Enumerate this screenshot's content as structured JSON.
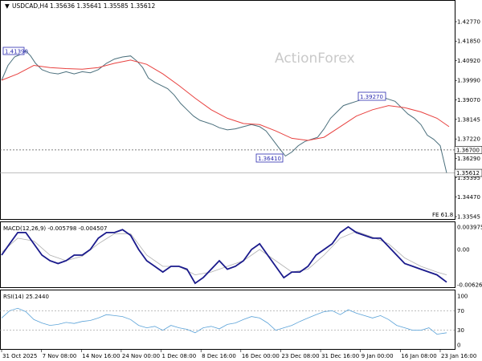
{
  "window": {
    "symbol_title": "USDCAD,H4",
    "ohlc": "1.35636 1.35641 1.35585 1.35612",
    "watermark": "ActionForex"
  },
  "colors": {
    "candles": "#4a6f7c",
    "ma": "#e8413f",
    "macd_line": "#1a1a8c",
    "macd_signal": "#b0b0b0",
    "rsi": "#5aa2d8",
    "tag_border": "#2b2bb0",
    "grid_dots": "#555555"
  },
  "price_panel": {
    "y_ticks": [
      "1.42770",
      "1.41850",
      "1.40920",
      "1.39990",
      "1.39070",
      "1.38145",
      "1.37220",
      "1.36290",
      "1.35395",
      "1.34470",
      "1.33545"
    ],
    "current_price": "1.35612",
    "hline_price": "1.36700",
    "annotations": {
      "high_left": "1.41390",
      "low_mid": "1.36410",
      "high_right": "1.39270"
    },
    "fe_label": "FE 61.8"
  },
  "macd_panel": {
    "title": "MACD(12,26,9) -0.005798 -0.004507",
    "y_ticks": [
      "0.003975",
      "0.00",
      "-0.006264"
    ]
  },
  "rsi_panel": {
    "title": "RSI(14) 25.2440",
    "y_ticks": [
      "100",
      "70",
      "30",
      "0"
    ]
  },
  "x_axis": {
    "labels": [
      "31 Oct 2025",
      "7 Nov 08:00",
      "14 Nov 16:00",
      "24 Nov 00:00",
      "1 Dec 08:00",
      "8 Dec 16:00",
      "16 Dec 00:00",
      "23 Dec 08:00",
      "31 Dec 16:00",
      "9 Jan 00:00",
      "16 Jan 08:00",
      "23 Jan 16:00"
    ]
  },
  "chart_data": {
    "type": "line",
    "title": "USDCAD,H4",
    "price_series": [
      [
        0,
        1.4
      ],
      [
        8,
        1.407
      ],
      [
        16,
        1.411
      ],
      [
        22,
        1.412
      ],
      [
        30,
        1.4139
      ],
      [
        36,
        1.4115
      ],
      [
        42,
        1.408
      ],
      [
        50,
        1.405
      ],
      [
        60,
        1.4035
      ],
      [
        70,
        1.403
      ],
      [
        80,
        1.404
      ],
      [
        90,
        1.403
      ],
      [
        100,
        1.404
      ],
      [
        110,
        1.4035
      ],
      [
        120,
        1.405
      ],
      [
        130,
        1.408
      ],
      [
        140,
        1.41
      ],
      [
        150,
        1.411
      ],
      [
        160,
        1.4115
      ],
      [
        168,
        1.409
      ],
      [
        175,
        1.406
      ],
      [
        182,
        1.401
      ],
      [
        190,
        1.399
      ],
      [
        198,
        1.3975
      ],
      [
        206,
        1.396
      ],
      [
        214,
        1.393
      ],
      [
        222,
        1.389
      ],
      [
        230,
        1.386
      ],
      [
        238,
        1.383
      ],
      [
        246,
        1.381
      ],
      [
        254,
        1.38
      ],
      [
        262,
        1.379
      ],
      [
        270,
        1.3775
      ],
      [
        280,
        1.3765
      ],
      [
        290,
        1.377
      ],
      [
        300,
        1.378
      ],
      [
        310,
        1.379
      ],
      [
        320,
        1.378
      ],
      [
        328,
        1.376
      ],
      [
        336,
        1.372
      ],
      [
        344,
        1.368
      ],
      [
        352,
        1.3641
      ],
      [
        360,
        1.366
      ],
      [
        368,
        1.369
      ],
      [
        376,
        1.371
      ],
      [
        384,
        1.372
      ],
      [
        392,
        1.373
      ],
      [
        400,
        1.377
      ],
      [
        408,
        1.382
      ],
      [
        416,
        1.385
      ],
      [
        424,
        1.388
      ],
      [
        432,
        1.389
      ],
      [
        440,
        1.39
      ],
      [
        448,
        1.391
      ],
      [
        456,
        1.392
      ],
      [
        464,
        1.3927
      ],
      [
        472,
        1.392
      ],
      [
        480,
        1.391
      ],
      [
        488,
        1.39
      ],
      [
        496,
        1.387
      ],
      [
        504,
        1.384
      ],
      [
        512,
        1.382
      ],
      [
        520,
        1.379
      ],
      [
        528,
        1.374
      ],
      [
        536,
        1.372
      ],
      [
        544,
        1.369
      ],
      [
        552,
        1.3561
      ]
    ],
    "ma_series": [
      [
        0,
        1.4
      ],
      [
        20,
        1.403
      ],
      [
        40,
        1.407
      ],
      [
        60,
        1.406
      ],
      [
        80,
        1.4055
      ],
      [
        100,
        1.4052
      ],
      [
        120,
        1.406
      ],
      [
        140,
        1.408
      ],
      [
        160,
        1.4095
      ],
      [
        180,
        1.4075
      ],
      [
        200,
        1.403
      ],
      [
        220,
        1.3975
      ],
      [
        240,
        1.3915
      ],
      [
        260,
        1.386
      ],
      [
        280,
        1.382
      ],
      [
        300,
        1.3795
      ],
      [
        320,
        1.379
      ],
      [
        340,
        1.376
      ],
      [
        360,
        1.3725
      ],
      [
        380,
        1.3715
      ],
      [
        400,
        1.373
      ],
      [
        420,
        1.378
      ],
      [
        440,
        1.383
      ],
      [
        460,
        1.386
      ],
      [
        480,
        1.388
      ],
      [
        500,
        1.387
      ],
      [
        520,
        1.385
      ],
      [
        540,
        1.382
      ],
      [
        555,
        1.378
      ]
    ],
    "macd_series": [
      [
        0,
        -0.001
      ],
      [
        10,
        0.001
      ],
      [
        20,
        0.003
      ],
      [
        30,
        0.003
      ],
      [
        40,
        0.001
      ],
      [
        50,
        -0.001
      ],
      [
        60,
        -0.002
      ],
      [
        70,
        -0.0025
      ],
      [
        80,
        -0.002
      ],
      [
        90,
        -0.001
      ],
      [
        100,
        -0.001
      ],
      [
        110,
        0.0
      ],
      [
        120,
        0.002
      ],
      [
        130,
        0.003
      ],
      [
        140,
        0.003
      ],
      [
        150,
        0.0035
      ],
      [
        160,
        0.0025
      ],
      [
        170,
        0.0
      ],
      [
        180,
        -0.002
      ],
      [
        190,
        -0.003
      ],
      [
        200,
        -0.004
      ],
      [
        210,
        -0.003
      ],
      [
        220,
        -0.003
      ],
      [
        230,
        -0.0035
      ],
      [
        240,
        -0.006
      ],
      [
        250,
        -0.005
      ],
      [
        260,
        -0.0035
      ],
      [
        270,
        -0.002
      ],
      [
        280,
        -0.0035
      ],
      [
        290,
        -0.003
      ],
      [
        300,
        -0.002
      ],
      [
        310,
        0.0
      ],
      [
        320,
        0.001
      ],
      [
        330,
        -0.001
      ],
      [
        340,
        -0.003
      ],
      [
        350,
        -0.005
      ],
      [
        360,
        -0.004
      ],
      [
        370,
        -0.004
      ],
      [
        380,
        -0.003
      ],
      [
        390,
        -0.001
      ],
      [
        400,
        0.0
      ],
      [
        410,
        0.001
      ],
      [
        420,
        0.003
      ],
      [
        430,
        0.004
      ],
      [
        440,
        0.003
      ],
      [
        450,
        0.0025
      ],
      [
        460,
        0.002
      ],
      [
        470,
        0.002
      ],
      [
        480,
        0.0005
      ],
      [
        490,
        -0.001
      ],
      [
        500,
        -0.0025
      ],
      [
        510,
        -0.003
      ],
      [
        520,
        -0.0035
      ],
      [
        530,
        -0.004
      ],
      [
        540,
        -0.0045
      ],
      [
        552,
        -0.0058
      ]
    ],
    "macd_signal_series": [
      [
        0,
        -0.0005
      ],
      [
        20,
        0.002
      ],
      [
        40,
        0.0015
      ],
      [
        60,
        -0.001
      ],
      [
        80,
        -0.002
      ],
      [
        100,
        -0.0012
      ],
      [
        120,
        0.001
      ],
      [
        140,
        0.0028
      ],
      [
        160,
        0.0028
      ],
      [
        180,
        -0.001
      ],
      [
        200,
        -0.003
      ],
      [
        220,
        -0.003
      ],
      [
        240,
        -0.0045
      ],
      [
        260,
        -0.004
      ],
      [
        280,
        -0.003
      ],
      [
        300,
        -0.002
      ],
      [
        320,
        0.0
      ],
      [
        340,
        -0.002
      ],
      [
        360,
        -0.004
      ],
      [
        380,
        -0.0035
      ],
      [
        400,
        -0.001
      ],
      [
        420,
        0.002
      ],
      [
        440,
        0.0032
      ],
      [
        460,
        0.0022
      ],
      [
        480,
        0.001
      ],
      [
        500,
        -0.0015
      ],
      [
        520,
        -0.003
      ],
      [
        540,
        -0.004
      ],
      [
        552,
        -0.0045
      ]
    ],
    "rsi_series": [
      [
        0,
        55
      ],
      [
        10,
        70
      ],
      [
        20,
        75
      ],
      [
        30,
        68
      ],
      [
        40,
        52
      ],
      [
        50,
        45
      ],
      [
        60,
        40
      ],
      [
        70,
        42
      ],
      [
        80,
        46
      ],
      [
        90,
        44
      ],
      [
        100,
        48
      ],
      [
        110,
        50
      ],
      [
        120,
        55
      ],
      [
        130,
        62
      ],
      [
        140,
        60
      ],
      [
        150,
        58
      ],
      [
        160,
        52
      ],
      [
        170,
        40
      ],
      [
        180,
        35
      ],
      [
        190,
        38
      ],
      [
        200,
        30
      ],
      [
        210,
        40
      ],
      [
        220,
        35
      ],
      [
        230,
        32
      ],
      [
        240,
        25
      ],
      [
        250,
        35
      ],
      [
        260,
        38
      ],
      [
        270,
        33
      ],
      [
        280,
        42
      ],
      [
        290,
        45
      ],
      [
        300,
        52
      ],
      [
        310,
        58
      ],
      [
        320,
        55
      ],
      [
        330,
        45
      ],
      [
        340,
        30
      ],
      [
        350,
        35
      ],
      [
        360,
        40
      ],
      [
        370,
        48
      ],
      [
        380,
        55
      ],
      [
        390,
        62
      ],
      [
        400,
        68
      ],
      [
        410,
        70
      ],
      [
        420,
        62
      ],
      [
        430,
        72
      ],
      [
        440,
        65
      ],
      [
        450,
        60
      ],
      [
        460,
        55
      ],
      [
        470,
        60
      ],
      [
        480,
        52
      ],
      [
        490,
        40
      ],
      [
        500,
        35
      ],
      [
        510,
        30
      ],
      [
        520,
        30
      ],
      [
        530,
        35
      ],
      [
        540,
        22
      ],
      [
        552,
        25
      ]
    ],
    "rsi_levels": [
      70,
      30
    ]
  }
}
